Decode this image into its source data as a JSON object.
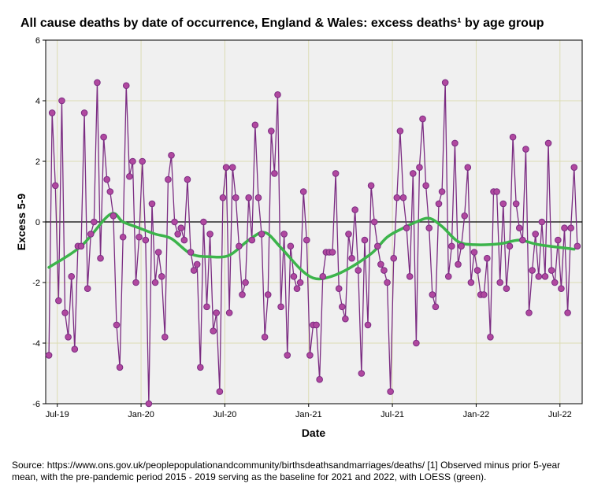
{
  "chart_data": {
    "type": "line",
    "title": "All cause deaths by date of occurrence, England & Wales: excess deaths¹ by age group",
    "xlabel": "Date",
    "ylabel": "Excess 5-9",
    "ylim": [
      -6,
      6
    ],
    "yticks": [
      -6,
      -4,
      -2,
      0,
      2,
      4,
      6
    ],
    "ytick_labels": [
      "-6",
      "-4",
      "-2",
      "0",
      "2",
      "4",
      "6"
    ],
    "xticks": [
      {
        "label": "Jul-19",
        "week": 2.6
      },
      {
        "label": "Jan-20",
        "week": 28.6
      },
      {
        "label": "Jul-20",
        "week": 54.6
      },
      {
        "label": "Jan-21",
        "week": 80.6
      },
      {
        "label": "Jul-21",
        "week": 106.6
      },
      {
        "label": "Jan-22",
        "week": 132.6
      },
      {
        "label": "Jul-22",
        "week": 158.6
      }
    ],
    "xlim": [
      -1,
      165.5
    ],
    "grid": true,
    "reference_line": 0,
    "series": [
      {
        "name": "Observed excess",
        "color": "#7b2c82",
        "marker_color": "#b0489f",
        "values": [
          -4.4,
          3.6,
          1.2,
          -2.6,
          4.0,
          -3.0,
          -3.8,
          -1.8,
          -4.2,
          -0.8,
          -0.8,
          3.6,
          -2.2,
          -0.4,
          0.0,
          4.6,
          -1.2,
          2.8,
          1.4,
          1.0,
          0.2,
          -3.4,
          -4.8,
          -0.5,
          4.5,
          1.5,
          2.0,
          -2.0,
          -0.5,
          2.0,
          -0.6,
          -6.0,
          0.6,
          -2.0,
          -1.0,
          -1.8,
          -3.8,
          1.4,
          2.2,
          0.0,
          -0.4,
          -0.2,
          -0.6,
          1.4,
          -1.0,
          -1.6,
          -1.4,
          -4.8,
          0.0,
          -2.8,
          -0.4,
          -3.6,
          -3.0,
          -5.6,
          0.8,
          1.8,
          -3.0,
          1.8,
          0.8,
          -0.8,
          -2.4,
          -2.0,
          0.8,
          -0.6,
          3.2,
          0.8,
          -0.4,
          -3.8,
          -2.4,
          3.0,
          1.6,
          4.2,
          -2.8,
          -0.4,
          -4.4,
          -0.8,
          -1.8,
          -2.2,
          -2.0,
          1.0,
          -0.6,
          -4.4,
          -3.4,
          -3.4,
          -5.2,
          -1.8,
          -1.0,
          -1.0,
          -1.0,
          1.6,
          -2.2,
          -2.8,
          -3.2,
          -0.4,
          -1.2,
          0.4,
          -1.6,
          -5.0,
          -0.6,
          -3.4,
          1.2,
          0.0,
          -0.8,
          -1.4,
          -1.6,
          -2.0,
          -5.6,
          -1.2,
          0.8,
          3.0,
          0.8,
          -0.2,
          -1.8,
          1.6,
          -4.0,
          1.8,
          3.4,
          1.2,
          -0.2,
          -2.4,
          -2.8,
          0.6,
          1.0,
          4.6,
          -1.8,
          -0.8,
          2.6,
          -1.4,
          -0.8,
          0.2,
          1.8,
          -2.0,
          -1.0,
          -1.6,
          -2.4,
          -2.4,
          -1.2,
          -3.8,
          1.0,
          1.0,
          -2.0,
          0.6,
          -2.2,
          -0.8,
          2.8,
          0.6,
          -0.2,
          -0.6,
          2.4,
          -3.0,
          -1.6,
          -0.4,
          -1.8,
          0.0,
          -1.8,
          2.6,
          -1.6,
          -2.0,
          -0.6,
          -2.2,
          -0.2,
          -3.0,
          -0.2,
          1.8,
          -0.8
        ]
      },
      {
        "name": "LOESS",
        "color": "#3cb44b",
        "knots": [
          {
            "week": 0,
            "value": -1.5
          },
          {
            "week": 10,
            "value": -0.8
          },
          {
            "week": 19,
            "value": 0.25
          },
          {
            "week": 23,
            "value": 0.0
          },
          {
            "week": 28,
            "value": -0.2
          },
          {
            "week": 33,
            "value": -0.4
          },
          {
            "week": 38,
            "value": -0.55
          },
          {
            "week": 44,
            "value": -1.05
          },
          {
            "week": 50,
            "value": -1.15
          },
          {
            "week": 56,
            "value": -1.1
          },
          {
            "week": 62,
            "value": -0.6
          },
          {
            "week": 67,
            "value": -0.35
          },
          {
            "week": 72,
            "value": -0.85
          },
          {
            "week": 78,
            "value": -1.55
          },
          {
            "week": 82,
            "value": -1.85
          },
          {
            "week": 86,
            "value": -1.85
          },
          {
            "week": 92,
            "value": -1.6
          },
          {
            "week": 100,
            "value": -1.05
          },
          {
            "week": 105,
            "value": -0.5
          },
          {
            "week": 110,
            "value": -0.2
          },
          {
            "week": 114,
            "value": 0.0
          },
          {
            "week": 118,
            "value": 0.12
          },
          {
            "week": 122,
            "value": -0.15
          },
          {
            "week": 127,
            "value": -0.65
          },
          {
            "week": 132,
            "value": -0.75
          },
          {
            "week": 140,
            "value": -0.72
          },
          {
            "week": 146,
            "value": -0.6
          },
          {
            "week": 152,
            "value": -0.75
          },
          {
            "week": 163,
            "value": -0.9
          }
        ]
      }
    ]
  },
  "footnote": "Source: https://www.ons.gov.uk/peoplepopulationandcommunity/birthsdeathsandmarriages/deaths/  [1] Observed minus prior 5-year mean, with the pre-pandemic period 2015 - 2019 serving as the baseline for 2021 and 2022, with LOESS (green)."
}
